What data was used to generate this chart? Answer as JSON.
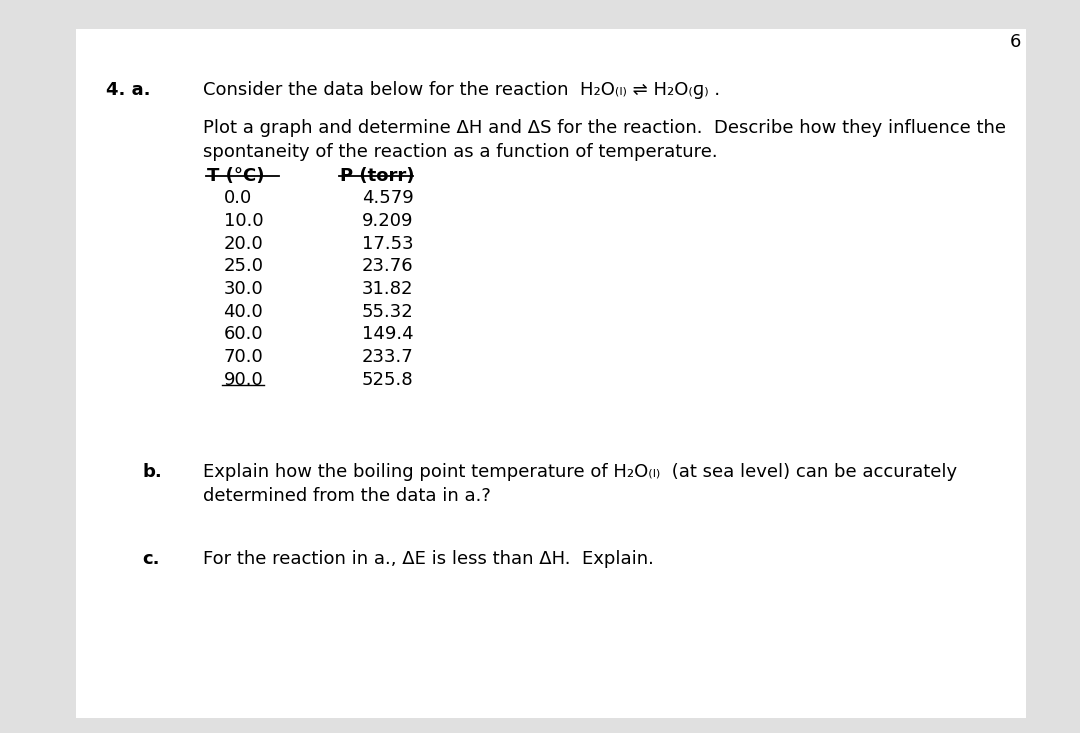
{
  "page_number": "6",
  "bg_color": "#e0e0e0",
  "content_bg": "#ffffff",
  "question_number": "4. a.",
  "line1": "Consider the data below for the reaction  H₂O₍ₗ₎ ⇌ H₂O₍ɡ₎ .",
  "para1_line1": "Plot a graph and determine ΔH and ΔS for the reaction.  Describe how they influence the",
  "para1_line2": "spontaneity of the reaction as a function of temperature.",
  "col1_header": "T (°C)",
  "col2_header": "P (torr)",
  "table_data": [
    [
      "0.0",
      "4.579"
    ],
    [
      "10.0",
      "9.209"
    ],
    [
      "20.0",
      "17.53"
    ],
    [
      "25.0",
      "23.76"
    ],
    [
      "30.0",
      "31.82"
    ],
    [
      "40.0",
      "55.32"
    ],
    [
      "60.0",
      "149.4"
    ],
    [
      "70.0",
      "233.7"
    ],
    [
      "90.0",
      "525.8"
    ]
  ],
  "b_label": "b.",
  "b_line1": "Explain how the boiling point temperature of H₂O₍ₗ₎  (at sea level) can be accurately",
  "b_line2": "determined from the data in a.?",
  "c_label": "c.",
  "c_line1": "For the reaction in a., ΔE is less than ΔH.  Explain.",
  "font_size_main": 13,
  "font_size_table": 13
}
